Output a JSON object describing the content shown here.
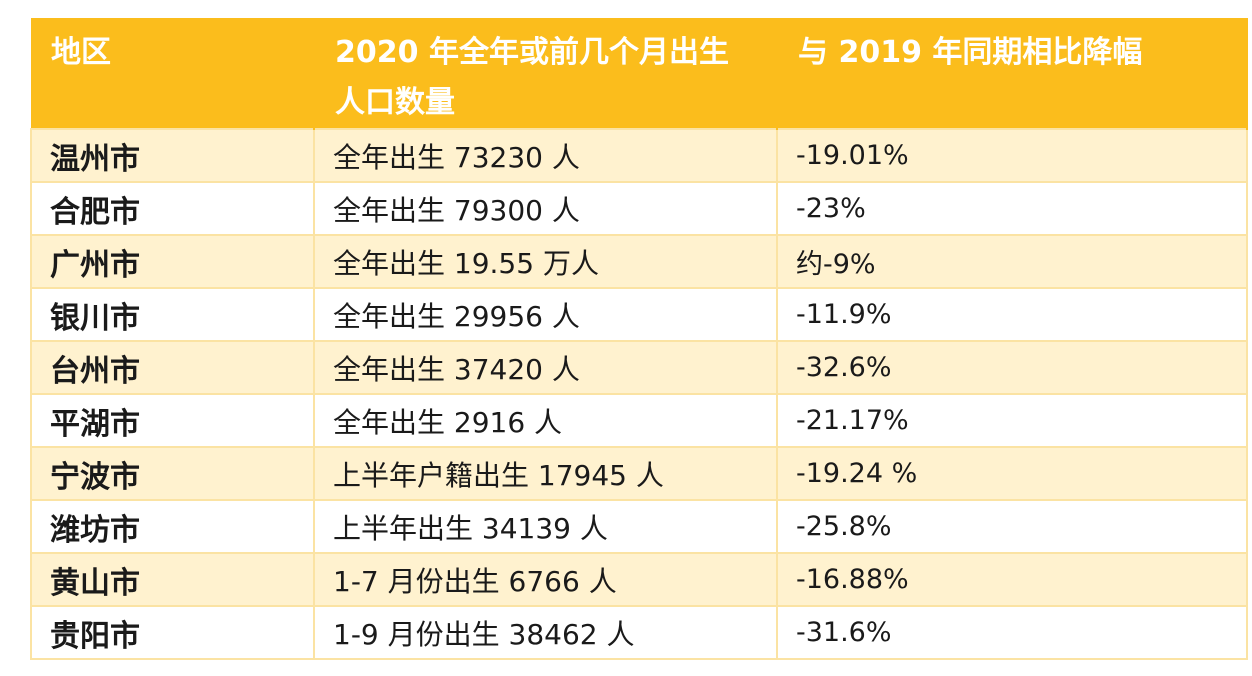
{
  "table": {
    "headers": {
      "region": "地区",
      "births": "2020 年全年或前几个月出生人口数量",
      "change": "与 2019 年同期相比降幅"
    },
    "rows": [
      {
        "region": "温州市",
        "births": "全年出生 73230 人",
        "change": "-19.01%"
      },
      {
        "region": "合肥市",
        "births": "全年出生 79300 人",
        "change": "-23%"
      },
      {
        "region": "广州市",
        "births": "全年出生 19.55 万人",
        "change": "约-9%"
      },
      {
        "region": "银川市",
        "births": "全年出生 29956 人",
        "change": "-11.9%"
      },
      {
        "region": "台州市",
        "births": "全年出生 37420 人",
        "change": "-32.6%"
      },
      {
        "region": "平湖市",
        "births": "全年出生 2916 人",
        "change": "-21.17%"
      },
      {
        "region": "宁波市",
        "births": "上半年户籍出生 17945 人",
        "change": "-19.24 %"
      },
      {
        "region": "潍坊市",
        "births": "上半年出生 34139 人",
        "change": "-25.8%"
      },
      {
        "region": "黄山市",
        "births": "1-7 月份出生 6766 人",
        "change": "-16.88%"
      },
      {
        "region": "贵阳市",
        "births": "1-9 月份出生 38462 人",
        "change": "-31.6%"
      }
    ]
  },
  "colors": {
    "header_bg": "#fbbd1c",
    "header_text": "#ffffff",
    "odd_row_bg": "#fff2cf",
    "even_row_bg": "#ffffff",
    "border": "#fbe3a3"
  }
}
